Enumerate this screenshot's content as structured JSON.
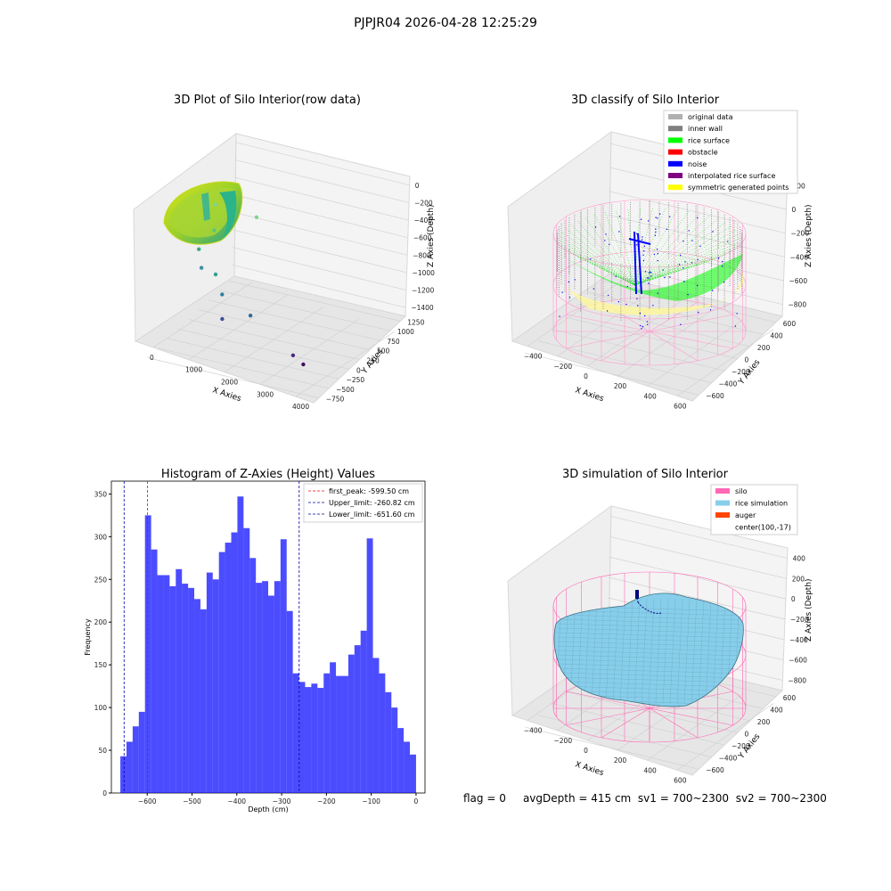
{
  "suptitle": "PJPJR04 2026-04-28 12:25:29",
  "status_line": {
    "flag": "flag = 0",
    "avg_depth": "avgDepth = 415 cm",
    "sv1": "sv1 = 700~2300",
    "sv2": "sv2 = 700~2300"
  },
  "chart_data": [
    {
      "type": "scatter",
      "projection": "3d",
      "title": "3D Plot of Silo Interior(row data)",
      "xlabel": "X Axies",
      "ylabel": "Y Axies",
      "zlabel": "Z Axies (Depth)",
      "x_ticks": [
        "0",
        "1000",
        "2000",
        "3000",
        "4000"
      ],
      "y_ticks": [
        "1250",
        "1000",
        "750",
        "500",
        "250",
        "0",
        "−250",
        "−500",
        "−750"
      ],
      "z_ticks": [
        "0",
        "−200",
        "−400",
        "−600",
        "−800",
        "−1000",
        "−1200",
        "−1400"
      ],
      "colormap": "viridis",
      "description_points": [
        {
          "x": 800,
          "y": 900,
          "z": -200,
          "color": "#7fd48a"
        },
        {
          "x": 1600,
          "y": 1300,
          "z": -300,
          "color": "#7fd48a"
        },
        {
          "x": 900,
          "y": 700,
          "z": -450,
          "color": "#5cc47a"
        },
        {
          "x": 700,
          "y": 400,
          "z": -650,
          "color": "#3aa98c"
        },
        {
          "x": 900,
          "y": 200,
          "z": -800,
          "color": "#3a8fa0"
        },
        {
          "x": 1200,
          "y": 300,
          "z": -850,
          "color": "#30a08c"
        },
        {
          "x": 1500,
          "y": 100,
          "z": -1000,
          "color": "#2f7fa0"
        },
        {
          "x": 2300,
          "y": 0,
          "z": -1100,
          "color": "#2e6a9a"
        },
        {
          "x": 1700,
          "y": -200,
          "z": -1200,
          "color": "#3b4f99"
        },
        {
          "x": 3600,
          "y": -300,
          "z": -1300,
          "color": "#4a2a80"
        },
        {
          "x": 3900,
          "y": -350,
          "z": -1350,
          "color": "#440f60"
        }
      ]
    },
    {
      "type": "scatter",
      "projection": "3d",
      "title": "3D classify of Silo Interior",
      "xlabel": "X Axies",
      "ylabel": "Y Axies",
      "zlabel": "Z Axies (Depth)",
      "x_ticks": [
        "−400",
        "−200",
        "0",
        "200",
        "400",
        "600"
      ],
      "y_ticks": [
        "600",
        "400",
        "200",
        "0",
        "−200",
        "−400",
        "−600"
      ],
      "z_ticks": [
        "200",
        "0",
        "−200",
        "−400",
        "−600",
        "−800"
      ],
      "legend": {
        "placement": "top-right",
        "entries": [
          {
            "label": "original data",
            "color": "#b0b0b0"
          },
          {
            "label": "inner wall",
            "color": "#808080"
          },
          {
            "label": "rice surface",
            "color": "#00ff00"
          },
          {
            "label": "obstacle",
            "color": "#ff0000"
          },
          {
            "label": "noise",
            "color": "#0000ff"
          },
          {
            "label": "interpolated rice surface",
            "color": "#800080"
          },
          {
            "label": "symmetric generated points",
            "color": "#ffff00"
          }
        ]
      }
    },
    {
      "type": "bar",
      "title": "Histogram of Z-Axies (Height) Values",
      "xlabel": "Depth (cm)",
      "ylabel": "Frequency",
      "xlim": [
        -680,
        20
      ],
      "ylim": [
        0,
        365
      ],
      "x_ticks": [
        "−600",
        "−500",
        "−400",
        "−300",
        "−200",
        "−100",
        "0"
      ],
      "y_ticks": [
        "0",
        "50",
        "100",
        "150",
        "200",
        "250",
        "300",
        "350"
      ],
      "bar_color": "#0000ff",
      "bin_start": -660,
      "bin_width": 10,
      "values": [
        43,
        60,
        78,
        95,
        325,
        285,
        255,
        255,
        242,
        262,
        245,
        240,
        227,
        215,
        258,
        250,
        282,
        293,
        305,
        347,
        310,
        275,
        246,
        248,
        231,
        248,
        297,
        213,
        140,
        130,
        124,
        128,
        123,
        140,
        153,
        137,
        137,
        162,
        173,
        190,
        298,
        158,
        140,
        118,
        100,
        76,
        60,
        45
      ],
      "lines": [
        {
          "label": "first_peak: -599.50 cm",
          "x": -599.5,
          "color": "#ff0000"
        },
        {
          "label": "Upper_limit: -260.82 cm",
          "x": -260.82,
          "color": "#0000aa"
        },
        {
          "label": "Lower_limit: -651.60 cm",
          "x": -651.6,
          "color": "#0000aa"
        }
      ],
      "legend_placement": "top-right"
    },
    {
      "type": "surface",
      "projection": "3d",
      "title": "3D simulation of Silo Interior",
      "xlabel": "X Axies",
      "ylabel": "Y Axies",
      "zlabel": "Z Axies (Depth)",
      "x_ticks": [
        "−400",
        "−200",
        "0",
        "200",
        "400",
        "600"
      ],
      "y_ticks": [
        "600",
        "400",
        "200",
        "0",
        "−200",
        "−400",
        "−600"
      ],
      "z_ticks": [
        "400",
        "200",
        "0",
        "−200",
        "−400",
        "−600",
        "−800"
      ],
      "legend": {
        "placement": "top-right",
        "entries": [
          {
            "label": "silo",
            "color": "#ff69b4"
          },
          {
            "label": "rice simulation",
            "color": "#87ceeb"
          },
          {
            "label": "auger",
            "color": "#ff4500"
          },
          {
            "label": "center(100,-17)",
            "color": ""
          }
        ]
      }
    }
  ]
}
